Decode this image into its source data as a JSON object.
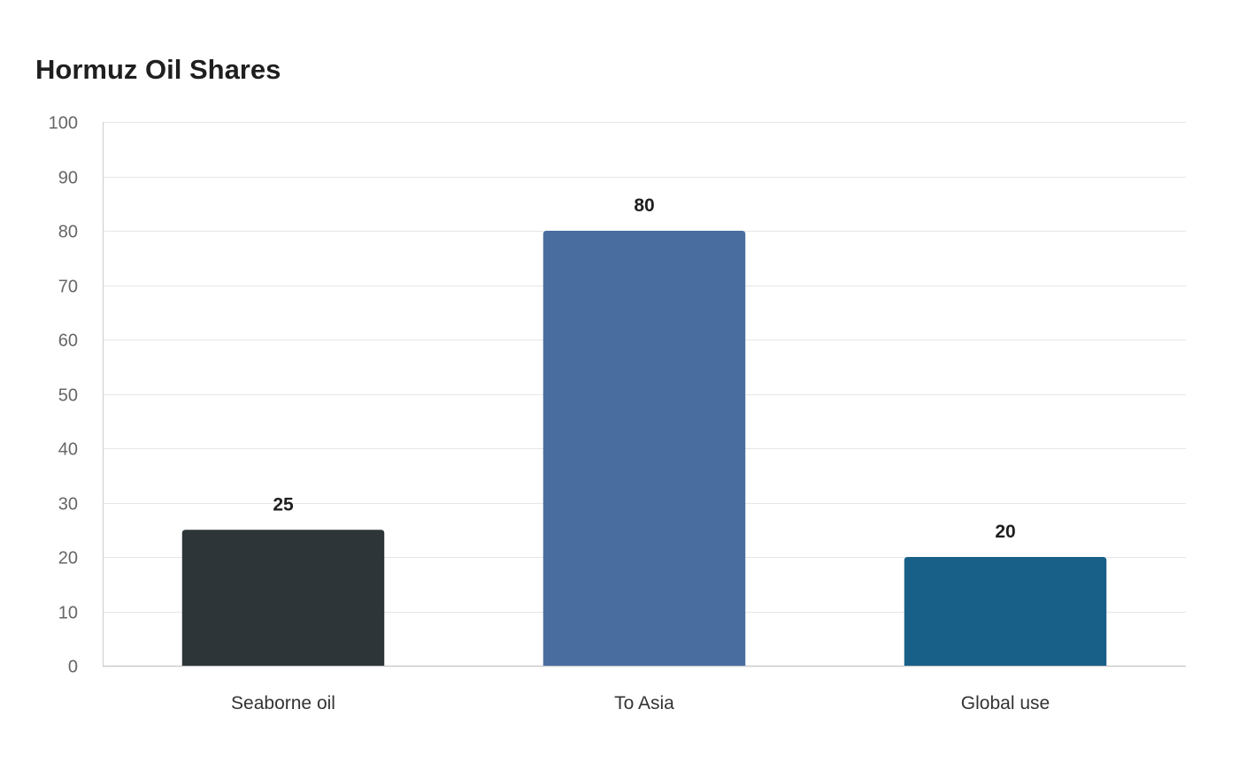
{
  "chart_data": {
    "type": "bar",
    "title": "Hormuz Oil Shares",
    "categories": [
      "Seaborne oil",
      "To Asia",
      "Global use"
    ],
    "values": [
      25,
      80,
      20
    ],
    "colors": [
      "#2e3538",
      "#4a6da0",
      "#186088"
    ],
    "xlabel": "",
    "ylabel": "",
    "ylim": [
      0,
      100
    ],
    "yticks": [
      0,
      10,
      20,
      30,
      40,
      50,
      60,
      70,
      80,
      90,
      100
    ],
    "grid": true,
    "legend": "none",
    "data_labels": true
  },
  "style": {
    "grid_color": "#e6e6e6",
    "axis_color": "#cccccc"
  }
}
